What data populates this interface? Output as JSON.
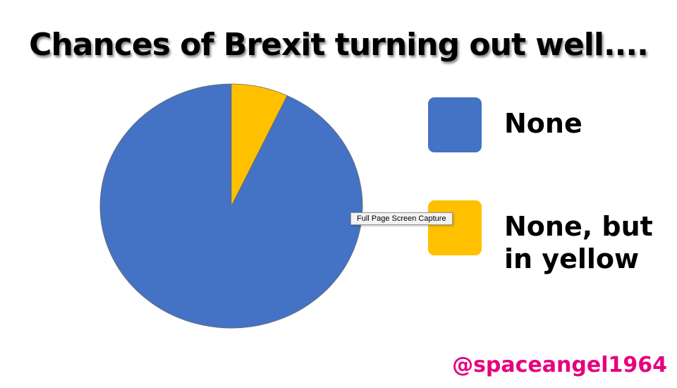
{
  "chart_data": {
    "type": "pie",
    "title": "Chances of Brexit turning out well....",
    "categories": [
      "None",
      "None, but in yellow"
    ],
    "values": [
      93,
      7
    ],
    "colors": [
      "#4472c4",
      "#ffc000"
    ]
  },
  "tooltip": "Full Page Screen Capture",
  "watermark": "@spaceangel1964"
}
